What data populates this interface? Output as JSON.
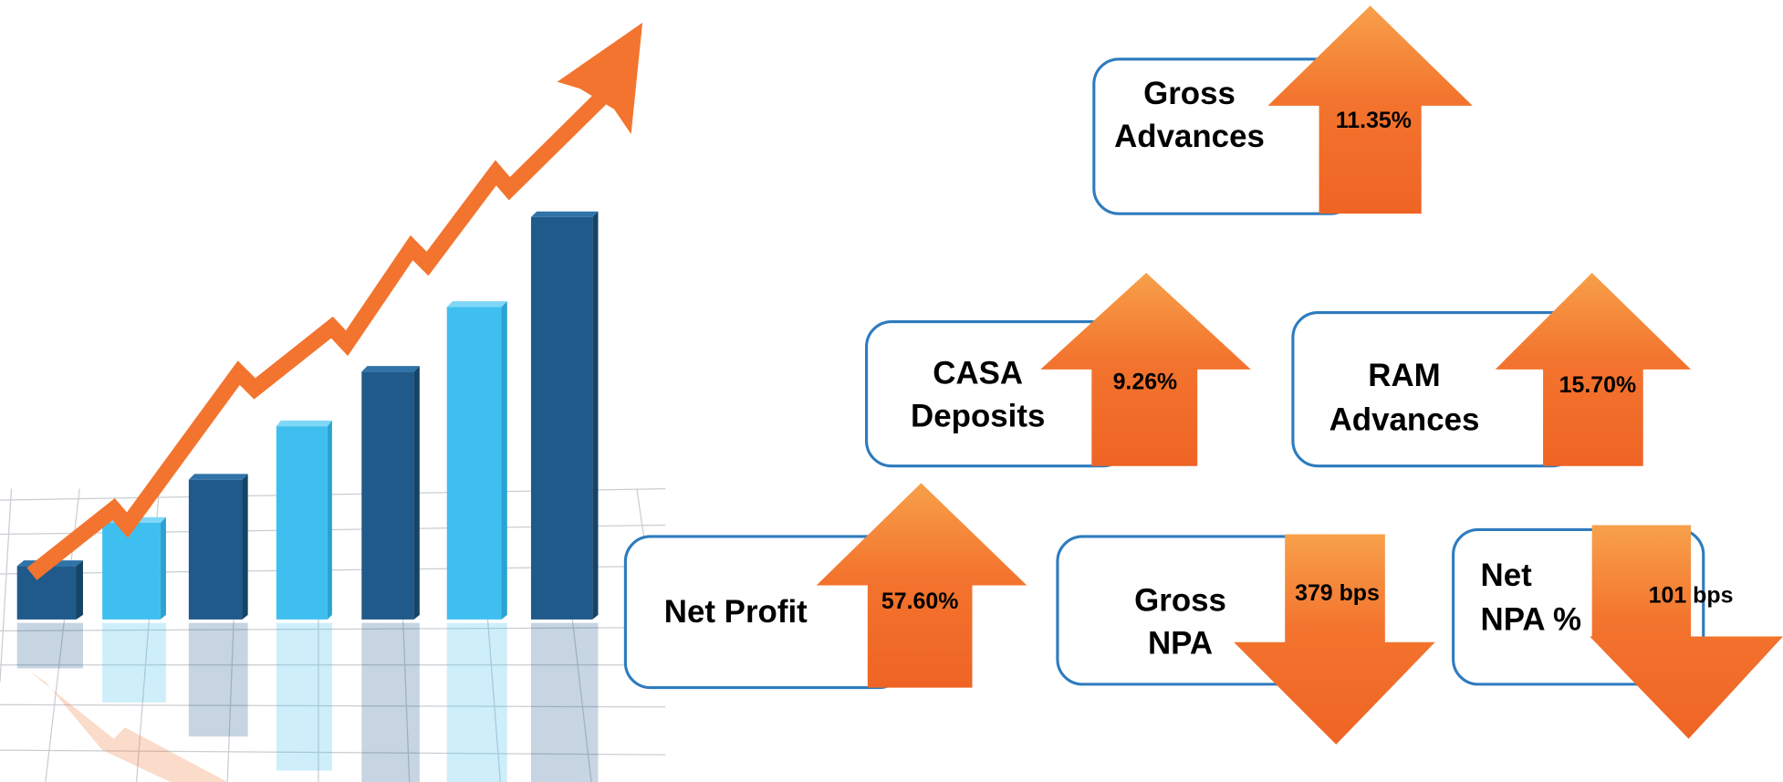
{
  "cards": [
    {
      "label": [
        "Gross",
        "Advances"
      ],
      "value": "11.35%",
      "direction": "up"
    },
    {
      "label": [
        "CASA",
        "Deposits"
      ],
      "value": "9.26%",
      "direction": "up"
    },
    {
      "label": [
        "RAM",
        "Advances"
      ],
      "value": "15.70%",
      "direction": "up"
    },
    {
      "label": [
        "Net Profit"
      ],
      "value": "57.60%",
      "direction": "up"
    },
    {
      "label": [
        "Gross",
        "NPA"
      ],
      "value": "379 bps",
      "direction": "down"
    },
    {
      "label": [
        "Net",
        "NPA %"
      ],
      "value": "101 bps",
      "direction": "down"
    }
  ]
}
